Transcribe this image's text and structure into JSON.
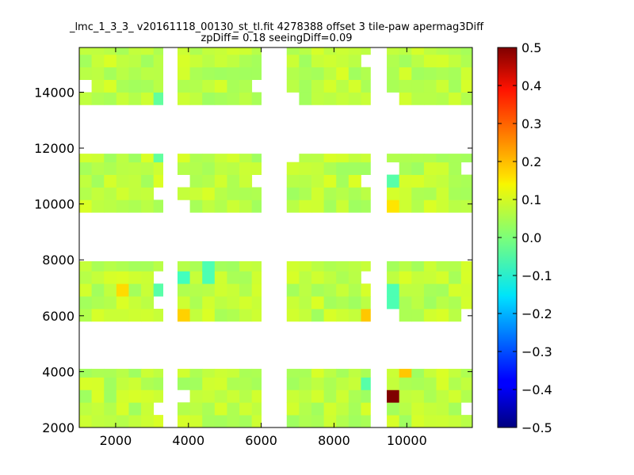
{
  "chart_data": {
    "type": "heatmap",
    "title_line1": "_lmc_1_3_3_ v20161118_00130_st_tl.fit 4278388 offset 3 tile-paw apermag3Diff",
    "title_line2": "zpDiff= 0.18 seeingDiff=0.09",
    "xlabel": "",
    "ylabel": "",
    "xlim": [
      1000,
      11800
    ],
    "ylim": [
      2000,
      15600
    ],
    "xticks": [
      2000,
      4000,
      6000,
      8000,
      10000
    ],
    "yticks": [
      2000,
      4000,
      6000,
      8000,
      10000,
      12000,
      14000
    ],
    "colorbar": {
      "colormap": "jet",
      "range": [
        -0.5,
        0.5
      ],
      "ticks": [
        0.5,
        0.4,
        0.3,
        0.2,
        0.1,
        0.0,
        -0.1,
        -0.2,
        -0.3,
        -0.4,
        -0.5
      ],
      "tick_labels": [
        "0.5",
        "0.4",
        "0.3",
        "0.2",
        "0.1",
        "0.0",
        "−0.1",
        "−0.2",
        "−0.3",
        "−0.4",
        "−0.5"
      ]
    },
    "cell_size": [
      340,
      450
    ],
    "chip_columns_x": [
      [
        1000,
        3300
      ],
      [
        3700,
        6000
      ],
      [
        6700,
        9000
      ],
      [
        9450,
        11800
      ]
    ],
    "chip_rows_y": [
      [
        13550,
        15600
      ],
      [
        9700,
        11800
      ],
      [
        5800,
        7950
      ],
      [
        2000,
        4100
      ]
    ],
    "base_value": 0.06,
    "notable_cells": [
      {
        "x": 9700,
        "y": 3100,
        "value": 0.5
      },
      {
        "x": 10000,
        "y": 3900,
        "value": 0.18
      },
      {
        "x": 8950,
        "y": 6000,
        "value": 0.2
      },
      {
        "x": 8800,
        "y": 6050,
        "value": 0.18
      },
      {
        "x": 3900,
        "y": 6000,
        "value": 0.17
      },
      {
        "x": 2150,
        "y": 7000,
        "value": 0.16
      },
      {
        "x": 9700,
        "y": 10000,
        "value": 0.15
      },
      {
        "x": 3850,
        "y": 7500,
        "value": -0.06
      },
      {
        "x": 4500,
        "y": 7600,
        "value": -0.05
      },
      {
        "x": 3300,
        "y": 7050,
        "value": -0.04
      },
      {
        "x": 9500,
        "y": 6700,
        "value": -0.05
      },
      {
        "x": 9500,
        "y": 11000,
        "value": -0.04
      },
      {
        "x": 3300,
        "y": 11700,
        "value": -0.03
      },
      {
        "x": 3300,
        "y": 13800,
        "value": -0.03
      },
      {
        "x": 6900,
        "y": 13800,
        "value": -0.03
      },
      {
        "x": 8000,
        "y": 5600,
        "value": -0.07
      },
      {
        "x": 10600,
        "y": 5600,
        "value": -0.07
      },
      {
        "x": 11200,
        "y": 5600,
        "value": -0.07
      },
      {
        "x": 8800,
        "y": 3700,
        "value": -0.04
      }
    ]
  }
}
